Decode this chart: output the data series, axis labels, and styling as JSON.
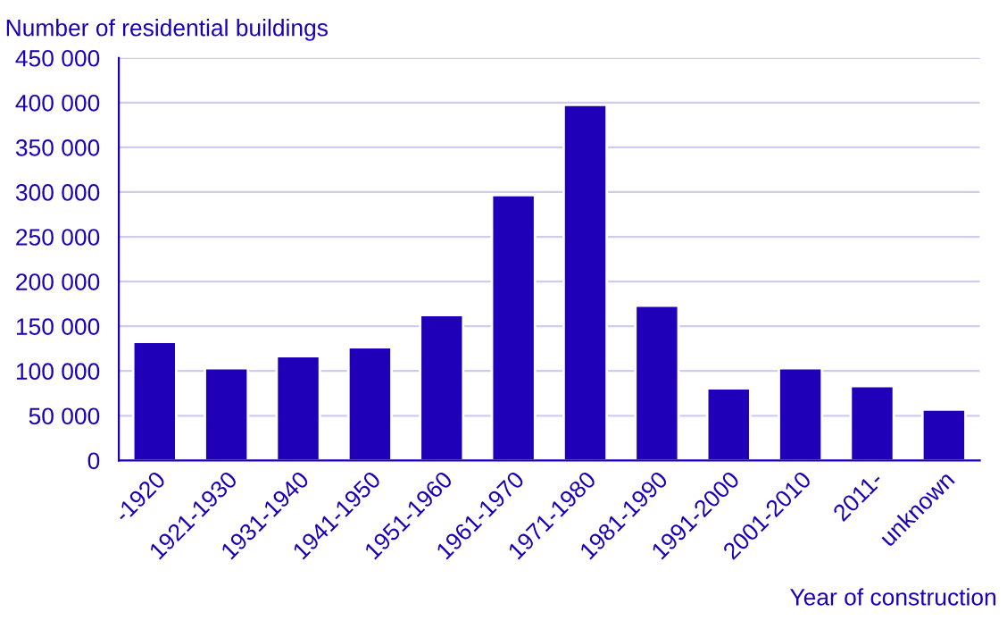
{
  "chart_data": {
    "type": "bar",
    "ylabel": "Number of residential buildings",
    "xlabel": "Year of construction",
    "categories": [
      "-1920",
      "1921-1930",
      "1931-1940",
      "1941-1950",
      "1951-1960",
      "1961-1970",
      "1971-1980",
      "1981-1990",
      "1991-2000",
      "2001-2010",
      "2011-",
      "unknown"
    ],
    "values": [
      132500,
      103000,
      116500,
      126500,
      162500,
      296500,
      397500,
      173000,
      80500,
      103000,
      83000,
      57000
    ],
    "color": "#1f00b8",
    "ylim": [
      0,
      450000
    ],
    "yticks": [
      0,
      {
        "value": 50000,
        "label": "50 000"
      },
      {
        "value": 100000,
        "label": "100 000"
      },
      {
        "value": 150000,
        "label": "150 000"
      },
      {
        "value": 200000,
        "label": "200 000"
      },
      {
        "value": 250000,
        "label": "250 000"
      },
      {
        "value": 300000,
        "label": "300 000"
      },
      {
        "value": 350000,
        "label": "350 000"
      },
      {
        "value": 400000,
        "label": "400 000"
      },
      {
        "value": 450000,
        "label": "450 000"
      }
    ],
    "grid": "y"
  }
}
